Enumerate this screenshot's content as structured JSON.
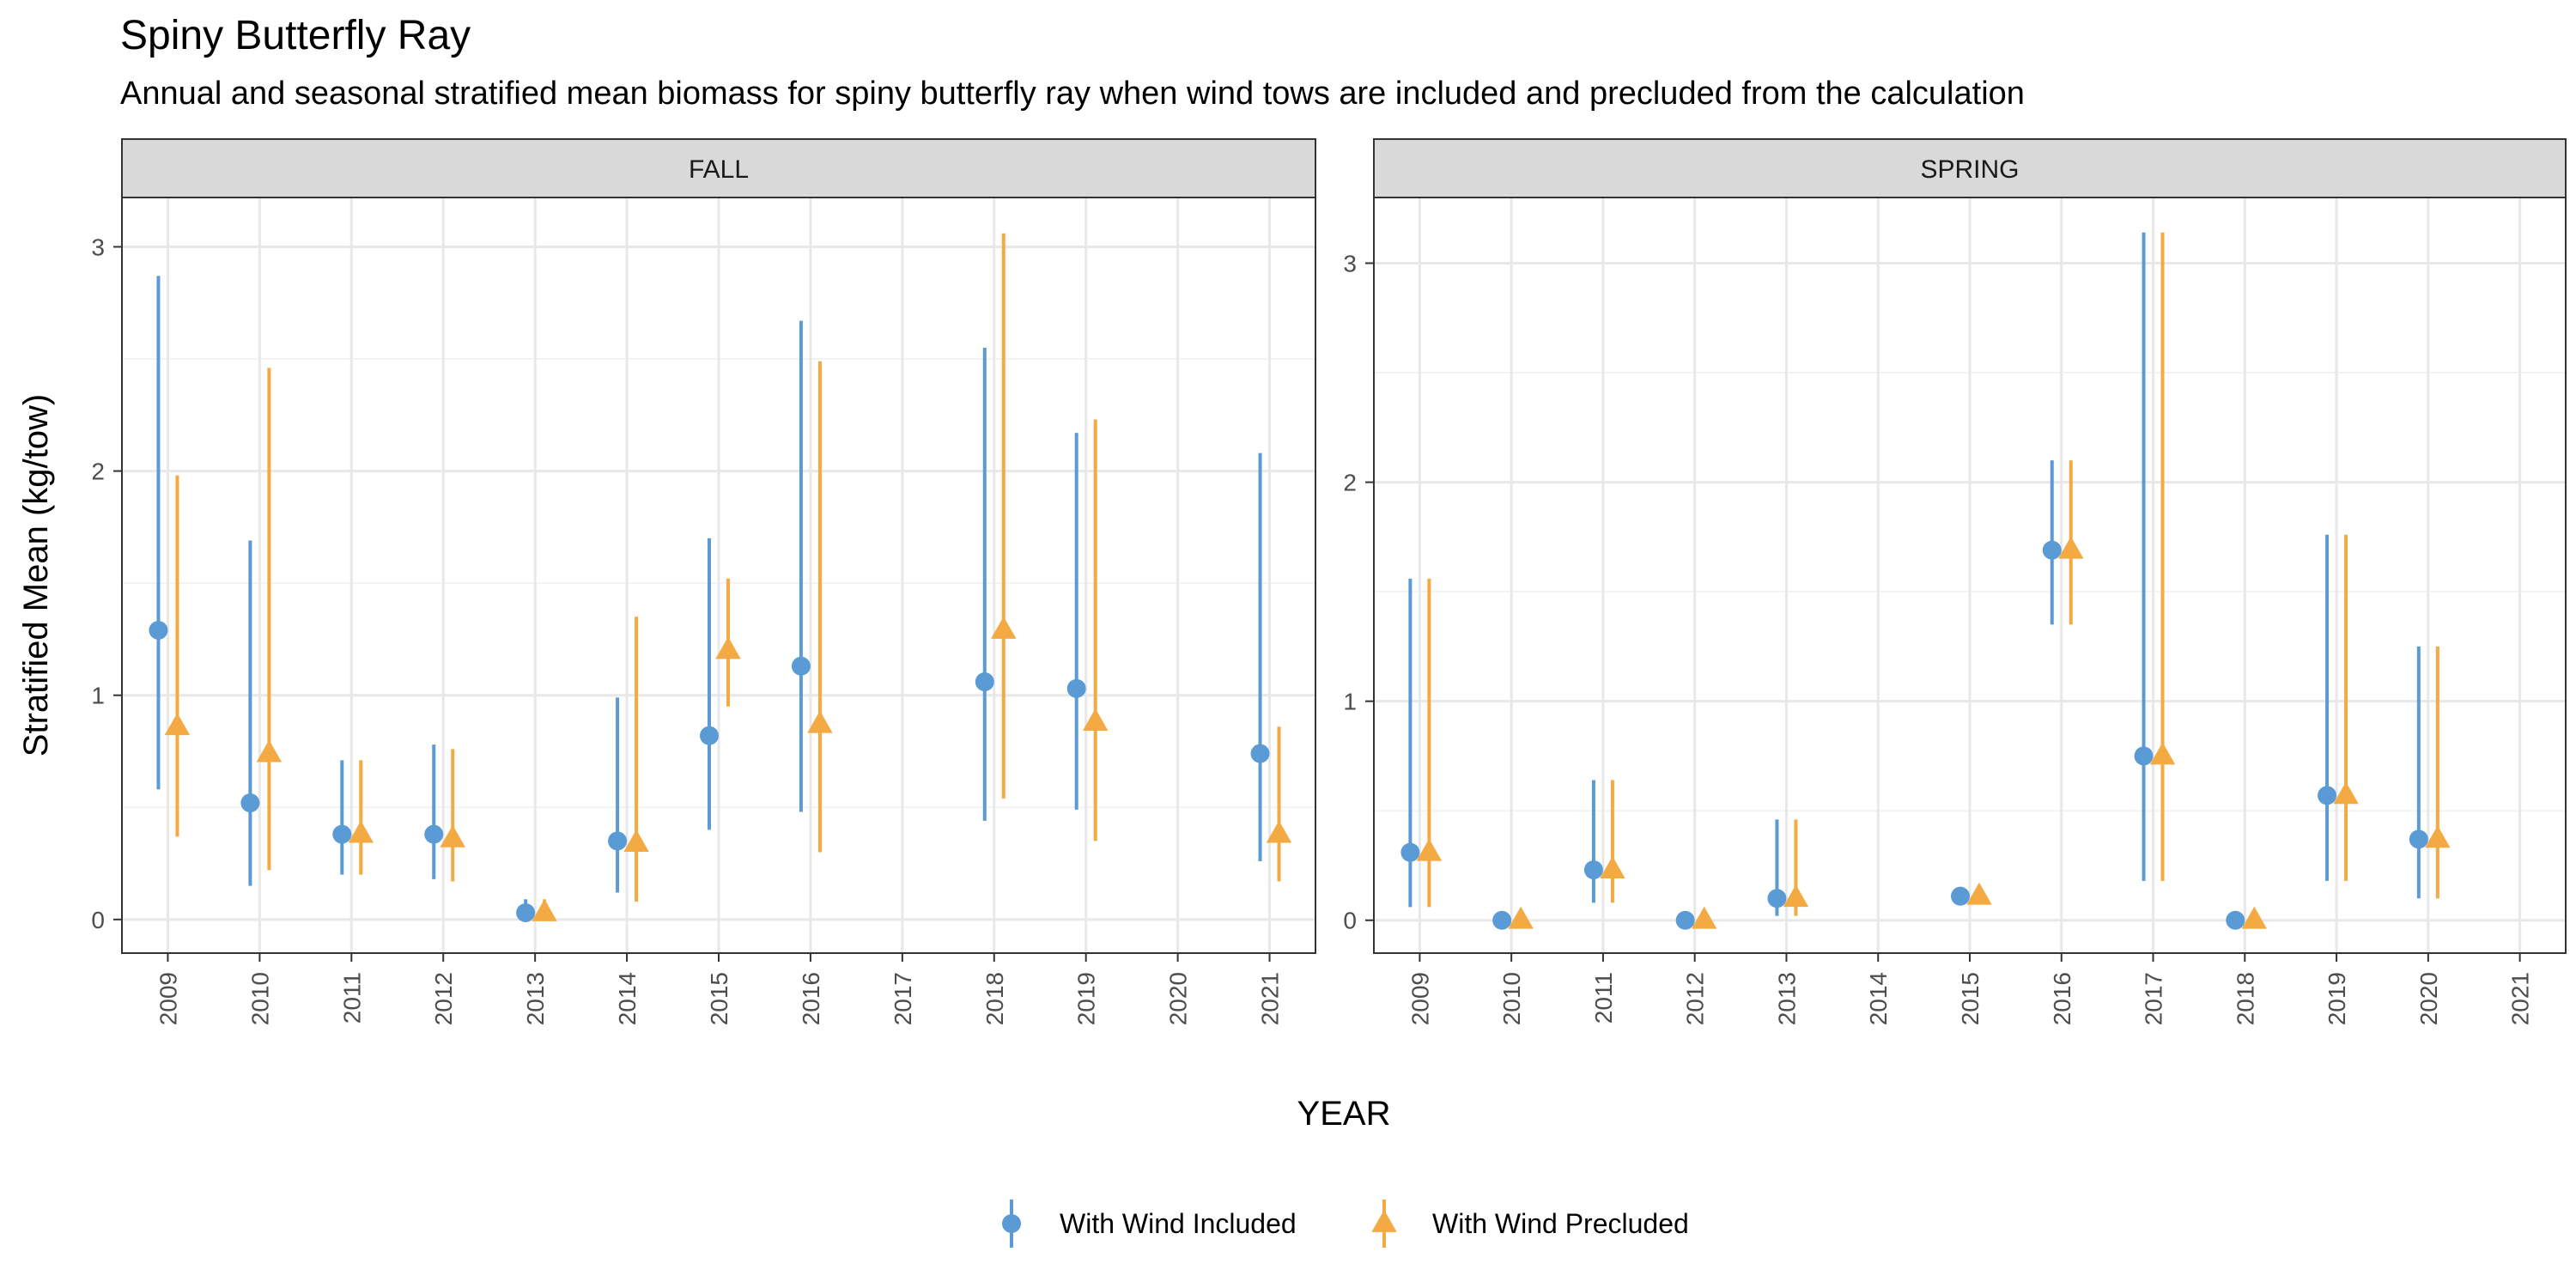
{
  "title": "Spiny Butterfly Ray",
  "subtitle": "Annual and seasonal stratified mean biomass for spiny butterfly ray when wind tows are included and precluded from the calculation",
  "colors": {
    "included": "#5B9BD5",
    "precluded": "#F4AA42",
    "strip_bg": "#D9D9D9",
    "grid_major": "#E8E8E8",
    "grid_minor": "#F3F3F3"
  },
  "chart_data": {
    "type": "scatter",
    "subtype": "point-range, faceted",
    "xlabel": "YEAR",
    "ylabel": "Stratified Mean (kg/tow)",
    "legend": {
      "position": "bottom",
      "entries": [
        {
          "name": "With Wind Included",
          "shape": "circle",
          "color": "#5B9BD5"
        },
        {
          "name": "With Wind Precluded",
          "shape": "triangle",
          "color": "#F4AA42"
        }
      ]
    },
    "grid": true,
    "facets": [
      {
        "label": "FALL",
        "years": [
          "2009",
          "2010",
          "2011",
          "2012",
          "2013",
          "2014",
          "2015",
          "2016",
          "2017",
          "2018",
          "2019",
          "2020",
          "2021"
        ],
        "ylim": [
          -0.15,
          3.22
        ],
        "yticks": [
          0,
          1,
          2,
          3
        ],
        "series": [
          {
            "name": "With Wind Included",
            "points": [
              {
                "x": "2009",
                "y": 1.29,
                "lower": 0.58,
                "upper": 2.87
              },
              {
                "x": "2010",
                "y": 0.52,
                "lower": 0.15,
                "upper": 1.69
              },
              {
                "x": "2011",
                "y": 0.38,
                "lower": 0.2,
                "upper": 0.71
              },
              {
                "x": "2012",
                "y": 0.38,
                "lower": 0.18,
                "upper": 0.78
              },
              {
                "x": "2013",
                "y": 0.03,
                "lower": 0.0,
                "upper": 0.09
              },
              {
                "x": "2014",
                "y": 0.35,
                "lower": 0.12,
                "upper": 0.99
              },
              {
                "x": "2015",
                "y": 0.82,
                "lower": 0.4,
                "upper": 1.7
              },
              {
                "x": "2016",
                "y": 1.13,
                "lower": 0.48,
                "upper": 2.67
              },
              {
                "x": "2018",
                "y": 1.06,
                "lower": 0.44,
                "upper": 2.55
              },
              {
                "x": "2019",
                "y": 1.03,
                "lower": 0.49,
                "upper": 2.17
              },
              {
                "x": "2021",
                "y": 0.74,
                "lower": 0.26,
                "upper": 2.08
              }
            ]
          },
          {
            "name": "With Wind Precluded",
            "points": [
              {
                "x": "2009",
                "y": 0.86,
                "lower": 0.37,
                "upper": 1.98
              },
              {
                "x": "2010",
                "y": 0.74,
                "lower": 0.22,
                "upper": 2.46
              },
              {
                "x": "2011",
                "y": 0.38,
                "lower": 0.2,
                "upper": 0.71
              },
              {
                "x": "2012",
                "y": 0.36,
                "lower": 0.17,
                "upper": 0.76
              },
              {
                "x": "2013",
                "y": 0.03,
                "lower": 0.0,
                "upper": 0.09
              },
              {
                "x": "2014",
                "y": 0.34,
                "lower": 0.08,
                "upper": 1.35
              },
              {
                "x": "2015",
                "y": 1.2,
                "lower": 0.95,
                "upper": 1.52
              },
              {
                "x": "2016",
                "y": 0.87,
                "lower": 0.3,
                "upper": 2.49
              },
              {
                "x": "2018",
                "y": 1.29,
                "lower": 0.54,
                "upper": 3.06
              },
              {
                "x": "2019",
                "y": 0.88,
                "lower": 0.35,
                "upper": 2.23
              },
              {
                "x": "2021",
                "y": 0.38,
                "lower": 0.17,
                "upper": 0.86
              }
            ]
          }
        ]
      },
      {
        "label": "SPRING",
        "years": [
          "2009",
          "2010",
          "2011",
          "2012",
          "2013",
          "2014",
          "2015",
          "2016",
          "2017",
          "2018",
          "2019",
          "2020",
          "2021"
        ],
        "ylim": [
          -0.15,
          3.3
        ],
        "yticks": [
          0,
          1,
          2,
          3
        ],
        "series": [
          {
            "name": "With Wind Included",
            "points": [
              {
                "x": "2009",
                "y": 0.31,
                "lower": 0.06,
                "upper": 1.56
              },
              {
                "x": "2010",
                "y": 0.0,
                "lower": 0.0,
                "upper": 0.0
              },
              {
                "x": "2011",
                "y": 0.23,
                "lower": 0.08,
                "upper": 0.64
              },
              {
                "x": "2012",
                "y": 0.0,
                "lower": 0.0,
                "upper": 0.0
              },
              {
                "x": "2013",
                "y": 0.1,
                "lower": 0.02,
                "upper": 0.46
              },
              {
                "x": "2015",
                "y": 0.11,
                "lower": 0.11,
                "upper": 0.11
              },
              {
                "x": "2016",
                "y": 1.69,
                "lower": 1.35,
                "upper": 2.1
              },
              {
                "x": "2017",
                "y": 0.75,
                "lower": 0.18,
                "upper": 3.14
              },
              {
                "x": "2018",
                "y": 0.0,
                "lower": 0.0,
                "upper": 0.0
              },
              {
                "x": "2019",
                "y": 0.57,
                "lower": 0.18,
                "upper": 1.76
              },
              {
                "x": "2020",
                "y": 0.37,
                "lower": 0.1,
                "upper": 1.25
              }
            ]
          },
          {
            "name": "With Wind Precluded",
            "points": [
              {
                "x": "2009",
                "y": 0.31,
                "lower": 0.06,
                "upper": 1.56
              },
              {
                "x": "2010",
                "y": 0.0,
                "lower": 0.0,
                "upper": 0.0
              },
              {
                "x": "2011",
                "y": 0.23,
                "lower": 0.08,
                "upper": 0.64
              },
              {
                "x": "2012",
                "y": 0.0,
                "lower": 0.0,
                "upper": 0.0
              },
              {
                "x": "2013",
                "y": 0.1,
                "lower": 0.02,
                "upper": 0.46
              },
              {
                "x": "2015",
                "y": 0.11,
                "lower": 0.11,
                "upper": 0.11
              },
              {
                "x": "2016",
                "y": 1.69,
                "lower": 1.35,
                "upper": 2.1
              },
              {
                "x": "2017",
                "y": 0.75,
                "lower": 0.18,
                "upper": 3.14
              },
              {
                "x": "2018",
                "y": 0.0,
                "lower": 0.0,
                "upper": 0.0
              },
              {
                "x": "2019",
                "y": 0.57,
                "lower": 0.18,
                "upper": 1.76
              },
              {
                "x": "2020",
                "y": 0.37,
                "lower": 0.1,
                "upper": 1.25
              }
            ]
          }
        ]
      }
    ]
  }
}
